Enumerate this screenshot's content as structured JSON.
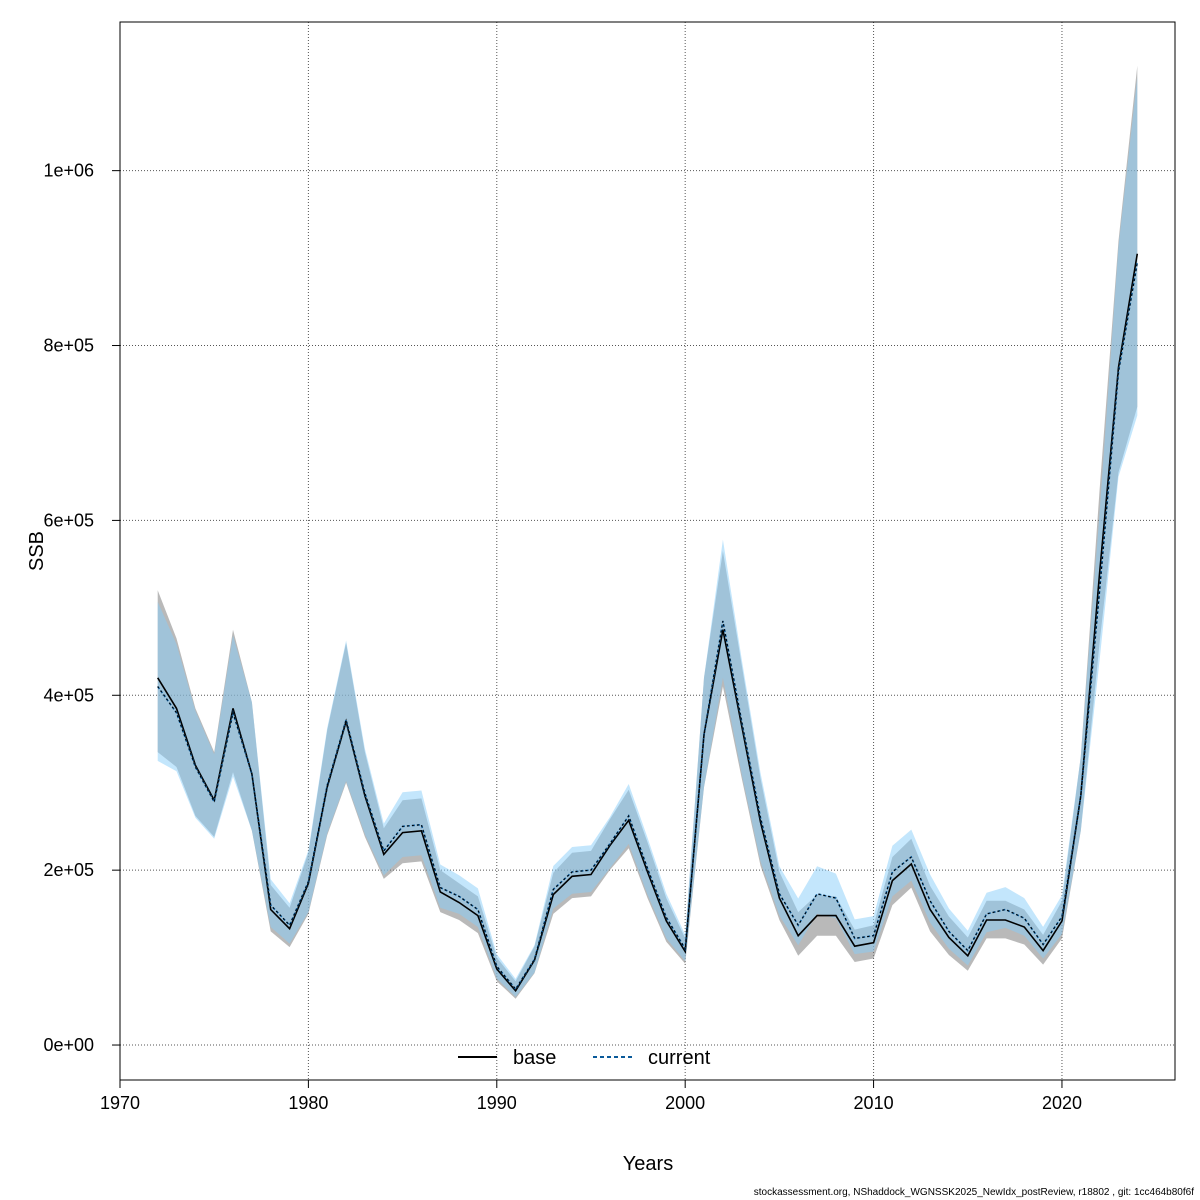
{
  "footer_text": "stockassessment.org, NShaddock_WGNSSK2025_NewIdx_postReview, r18802 , git: 1cc464b80f6f",
  "colors": {
    "base_line": "#000000",
    "base_band": "rgba(128,128,128,0.55)",
    "current_line": "#0a5a9a",
    "current_band": "rgba(135,206,250,0.50)",
    "grid": "#555555"
  },
  "chart_data": {
    "type": "line",
    "xlabel": "Years",
    "ylabel": "SSB",
    "xlim": [
      1970,
      2026
    ],
    "ylim": [
      -40000,
      1170000
    ],
    "x_ticks": [
      1970,
      1980,
      1990,
      2000,
      2010,
      2020
    ],
    "y_ticks": [
      0,
      200000,
      400000,
      600000,
      800000,
      1000000
    ],
    "y_tick_labels": [
      "0e+00",
      "2e+05",
      "4e+05",
      "6e+05",
      "8e+05",
      "1e+06"
    ],
    "grid": true,
    "legend_position": "bottom-center",
    "x": [
      1972,
      1973,
      1974,
      1975,
      1976,
      1977,
      1978,
      1979,
      1980,
      1981,
      1982,
      1983,
      1984,
      1985,
      1986,
      1987,
      1988,
      1989,
      1990,
      1991,
      1992,
      1993,
      1994,
      1995,
      1996,
      1997,
      1998,
      1999,
      2000,
      2001,
      2002,
      2003,
      2004,
      2005,
      2006,
      2007,
      2008,
      2009,
      2010,
      2011,
      2012,
      2013,
      2014,
      2015,
      2016,
      2017,
      2018,
      2019,
      2020,
      2021,
      2022,
      2023,
      2024
    ],
    "series": [
      {
        "name": "base",
        "line_style": "solid",
        "values": [
          420000,
          385000,
          320000,
          280000,
          385000,
          310000,
          155000,
          133000,
          185000,
          295000,
          370000,
          285000,
          218000,
          243000,
          245000,
          175000,
          163000,
          148000,
          87000,
          62000,
          97000,
          172000,
          193000,
          195000,
          228000,
          257000,
          198000,
          142000,
          107000,
          355000,
          475000,
          365000,
          255000,
          168000,
          125000,
          148000,
          148000,
          113000,
          117000,
          188000,
          207000,
          155000,
          123000,
          102000,
          143000,
          143000,
          135000,
          108000,
          142000,
          285000,
          540000,
          775000,
          905000
        ],
        "lower": [
          335000,
          318000,
          262000,
          238000,
          312000,
          245000,
          130000,
          112000,
          150000,
          240000,
          300000,
          238000,
          190000,
          208000,
          210000,
          152000,
          143000,
          128000,
          73000,
          53000,
          82000,
          150000,
          168000,
          170000,
          200000,
          225000,
          168000,
          118000,
          93000,
          295000,
          410000,
          305000,
          205000,
          143000,
          102000,
          125000,
          125000,
          95000,
          99000,
          160000,
          180000,
          130000,
          103000,
          85000,
          122000,
          122000,
          115000,
          92000,
          122000,
          245000,
          460000,
          655000,
          730000
        ],
        "upper": [
          520000,
          465000,
          385000,
          335000,
          475000,
          392000,
          183000,
          157000,
          220000,
          360000,
          460000,
          335000,
          248000,
          280000,
          282000,
          200000,
          185000,
          170000,
          100000,
          73000,
          113000,
          197000,
          220000,
          222000,
          258000,
          292000,
          232000,
          168000,
          122000,
          420000,
          565000,
          435000,
          305000,
          198000,
          152000,
          172000,
          170000,
          132000,
          137000,
          215000,
          236000,
          182000,
          147000,
          123000,
          165000,
          165000,
          155000,
          126000,
          165000,
          330000,
          635000,
          920000,
          1120000
        ]
      },
      {
        "name": "current",
        "line_style": "dashed",
        "values": [
          410000,
          380000,
          318000,
          278000,
          380000,
          310000,
          160000,
          137000,
          187000,
          297000,
          372000,
          288000,
          222000,
          250000,
          252000,
          180000,
          170000,
          155000,
          90000,
          64000,
          98000,
          178000,
          198000,
          200000,
          230000,
          262000,
          202000,
          146000,
          110000,
          355000,
          485000,
          370000,
          260000,
          173000,
          137000,
          173000,
          168000,
          122000,
          125000,
          198000,
          215000,
          165000,
          130000,
          108000,
          150000,
          155000,
          145000,
          115000,
          147000,
          285000,
          520000,
          770000,
          895000
        ]
      }
    ]
  },
  "legend": {
    "base_label": "base",
    "current_label": "current"
  }
}
